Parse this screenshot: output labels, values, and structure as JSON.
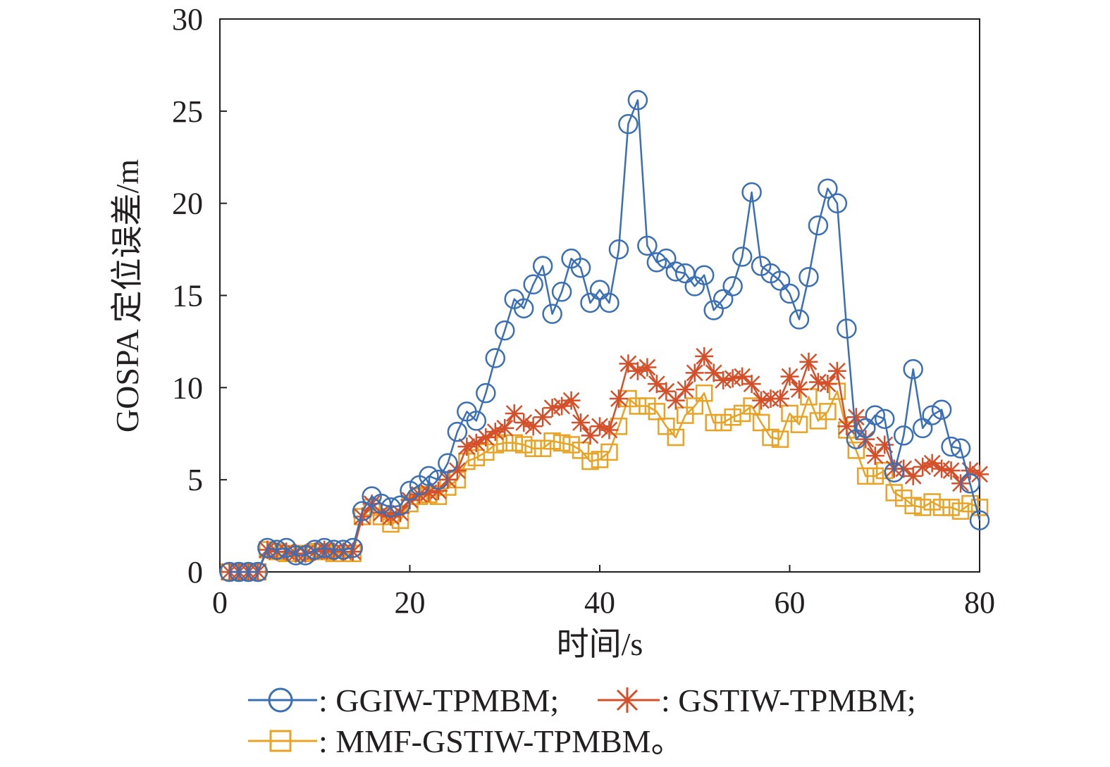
{
  "chart_data": {
    "type": "line",
    "title": "",
    "xlabel": "时间/s",
    "ylabel": "GOSPA 定位误差/m",
    "xlim": [
      0,
      80
    ],
    "ylim": [
      0,
      30
    ],
    "xticks": [
      0,
      20,
      40,
      60,
      80
    ],
    "yticks": [
      0,
      5,
      10,
      15,
      20,
      25,
      30
    ],
    "x_tick_labels": [
      "0",
      "20",
      "40",
      "60",
      "80"
    ],
    "y_tick_labels": [
      "0",
      "5",
      "10",
      "15",
      "20",
      "25",
      "30"
    ],
    "grid": false,
    "legend_position": "bottom",
    "x": [
      1,
      2,
      3,
      4,
      5,
      6,
      7,
      8,
      9,
      10,
      11,
      12,
      13,
      14,
      15,
      16,
      17,
      18,
      19,
      20,
      21,
      22,
      23,
      24,
      25,
      26,
      27,
      28,
      29,
      30,
      31,
      32,
      33,
      34,
      35,
      36,
      37,
      38,
      39,
      40,
      41,
      42,
      43,
      44,
      45,
      46,
      47,
      48,
      49,
      50,
      51,
      52,
      53,
      54,
      55,
      56,
      57,
      58,
      59,
      60,
      61,
      62,
      63,
      64,
      65,
      66,
      67,
      68,
      69,
      70,
      71,
      72,
      73,
      74,
      75,
      76,
      77,
      78,
      79,
      80
    ],
    "series": [
      {
        "name": "GGIW-TPMBM",
        "color": "#3a6fb5",
        "marker": "circle",
        "values": [
          0,
          0,
          0,
          0,
          1.3,
          1.2,
          1.3,
          0.9,
          0.9,
          1.2,
          1.3,
          1.2,
          1.2,
          1.3,
          3.3,
          4.1,
          3.7,
          3.5,
          3.6,
          4.4,
          4.7,
          5.2,
          5.0,
          5.9,
          7.6,
          8.7,
          8.2,
          9.7,
          11.6,
          13.1,
          14.8,
          14.3,
          15.6,
          16.6,
          14.0,
          15.2,
          17.0,
          16.5,
          14.6,
          15.3,
          14.6,
          17.5,
          24.3,
          25.6,
          17.7,
          16.8,
          17.0,
          16.3,
          16.2,
          15.5,
          16.1,
          14.2,
          14.8,
          15.5,
          17.1,
          20.6,
          16.6,
          16.2,
          15.8,
          15.1,
          13.7,
          16.0,
          18.8,
          20.8,
          20.0,
          13.2,
          7.2,
          7.8,
          8.5,
          8.3,
          5.4,
          7.4,
          11.0,
          7.8,
          8.5,
          8.8,
          6.8,
          6.7,
          4.8,
          2.8
        ]
      },
      {
        "name": "GSTIW-TPMBM",
        "color": "#d4502a",
        "marker": "star",
        "values": [
          0,
          0,
          0,
          0,
          1.2,
          1.1,
          1.1,
          1.0,
          1.0,
          1.1,
          1.2,
          1.1,
          1.1,
          1.1,
          3.0,
          3.7,
          3.2,
          3.0,
          3.2,
          3.9,
          4.2,
          4.3,
          4.4,
          5.0,
          5.5,
          6.8,
          7.0,
          7.3,
          7.6,
          7.8,
          8.6,
          8.1,
          7.9,
          8.4,
          8.9,
          9.0,
          9.3,
          8.1,
          7.4,
          7.9,
          7.7,
          9.4,
          11.3,
          10.9,
          11.1,
          10.2,
          9.8,
          9.3,
          9.9,
          10.8,
          11.7,
          10.8,
          10.4,
          10.5,
          10.6,
          10.2,
          9.3,
          9.4,
          9.4,
          10.6,
          9.9,
          11.4,
          10.3,
          10.2,
          10.9,
          7.9,
          8.4,
          7.2,
          6.3,
          6.9,
          5.6,
          5.6,
          5.2,
          5.7,
          5.9,
          5.6,
          5.5,
          4.8,
          5.5,
          5.3
        ]
      },
      {
        "name": "MMF-GSTIW-TPMBM",
        "color": "#e8a325",
        "marker": "square",
        "values": [
          0,
          0,
          0,
          0,
          1.2,
          1.1,
          1.0,
          1.0,
          1.0,
          1.1,
          1.1,
          1.0,
          1.0,
          1.0,
          3.0,
          3.5,
          3.0,
          2.6,
          2.8,
          3.7,
          4.1,
          4.2,
          4.1,
          4.6,
          5.0,
          6.0,
          6.2,
          6.5,
          6.9,
          7.0,
          7.0,
          6.9,
          6.7,
          6.7,
          7.1,
          7.0,
          6.9,
          6.6,
          6.0,
          6.1,
          6.5,
          7.9,
          9.4,
          9.0,
          9.0,
          8.7,
          7.9,
          7.3,
          8.5,
          9.0,
          9.7,
          8.1,
          8.1,
          8.4,
          8.6,
          9.0,
          8.1,
          7.3,
          7.2,
          8.6,
          8.0,
          9.5,
          8.2,
          8.7,
          9.8,
          7.7,
          6.6,
          5.2,
          5.2,
          5.5,
          4.3,
          4.0,
          3.6,
          3.5,
          3.8,
          3.5,
          3.5,
          3.3,
          3.7,
          3.5
        ]
      }
    ]
  },
  "legend": {
    "items": [
      {
        "label": ": GGIW-TPMBM;"
      },
      {
        "label": ": GSTIW-TPMBM;"
      },
      {
        "label": ": MMF-GSTIW-TPMBM。"
      }
    ]
  }
}
